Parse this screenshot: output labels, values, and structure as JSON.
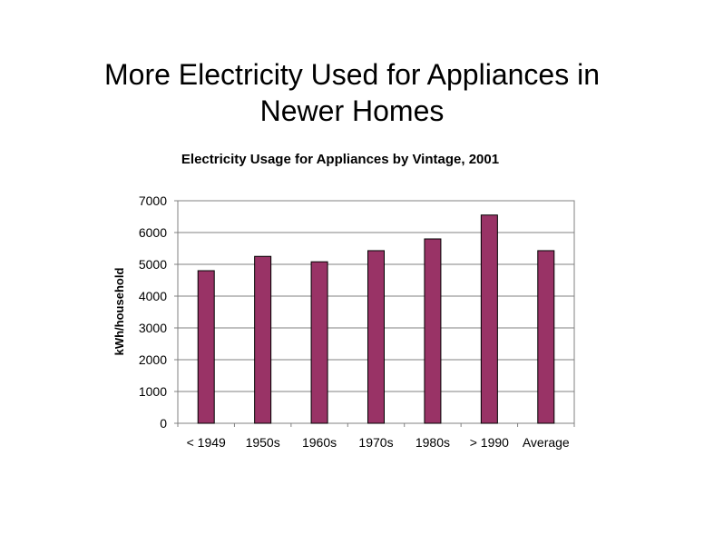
{
  "slide": {
    "title_line1": "More Electricity Used for Appliances in",
    "title_line2": "Newer Homes"
  },
  "chart_data": {
    "type": "bar",
    "title": "Electricity Usage for Appliances by Vintage, 2001",
    "xlabel": "",
    "ylabel": "kWh/household",
    "categories": [
      "< 1949",
      "1950s",
      "1960s",
      "1970s",
      "1980s",
      "> 1990",
      "Average"
    ],
    "values": [
      4800,
      5250,
      5080,
      5430,
      5800,
      6550,
      5430
    ],
    "ylim": [
      0,
      7000
    ],
    "yticks": [
      0,
      1000,
      2000,
      3000,
      4000,
      5000,
      6000,
      7000
    ],
    "grid": true,
    "legend": "none",
    "bar_color": "#993366"
  }
}
